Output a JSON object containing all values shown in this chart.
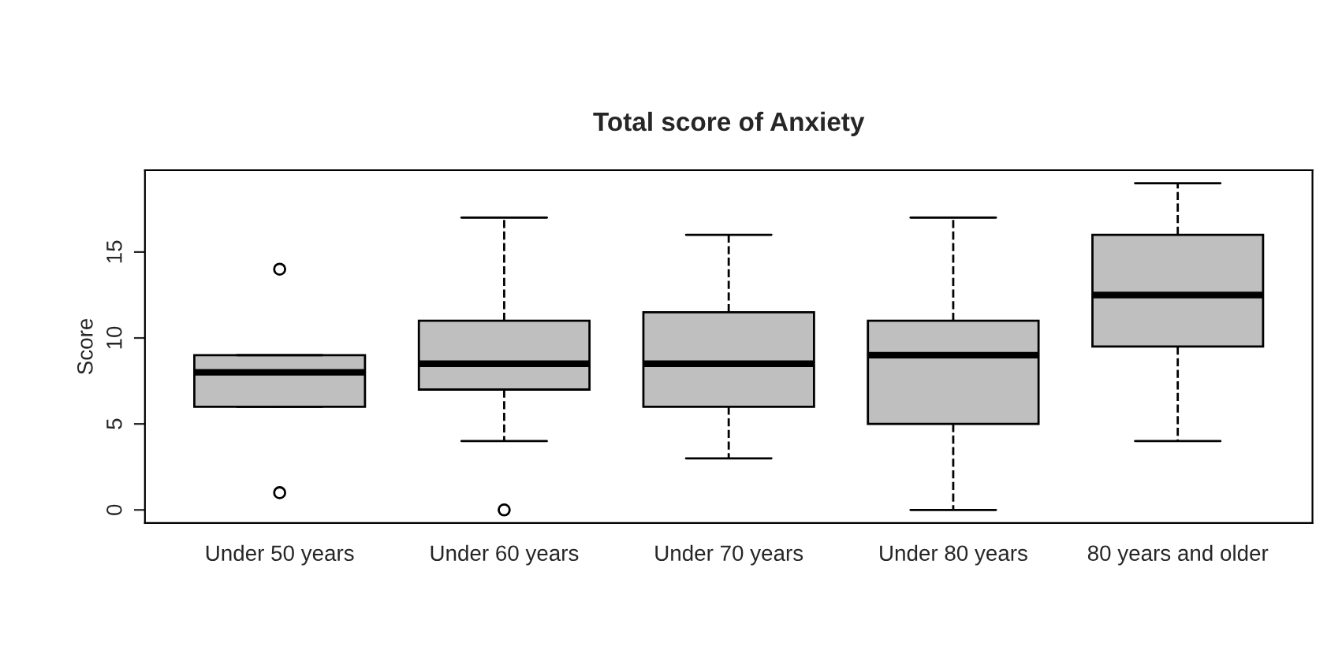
{
  "chart_data": {
    "type": "box",
    "title": "Total score of Anxiety",
    "ylabel": "Score",
    "color": "#bfbfbf",
    "categories": [
      "Under 50 years",
      "Under 60 years",
      "Under 70 years",
      "Under 80 years",
      "80 years and older"
    ],
    "boxes": [
      {
        "low": 6,
        "q1": 6,
        "median": 8,
        "q3": 9,
        "high": 9,
        "outliers": [
          14,
          1
        ]
      },
      {
        "low": 4,
        "q1": 7,
        "median": 8.5,
        "q3": 11,
        "high": 17,
        "outliers": [
          0
        ]
      },
      {
        "low": 3,
        "q1": 6,
        "median": 8.5,
        "q3": 11.5,
        "high": 16
      },
      {
        "low": 0,
        "q1": 5,
        "median": 9,
        "q3": 11,
        "high": 17
      },
      {
        "low": 4,
        "q1": 9.5,
        "median": 12.5,
        "q3": 16,
        "high": 19
      }
    ],
    "ylim": [
      -0.76,
      19.76
    ],
    "yticks": [
      0,
      5,
      10,
      15
    ]
  }
}
